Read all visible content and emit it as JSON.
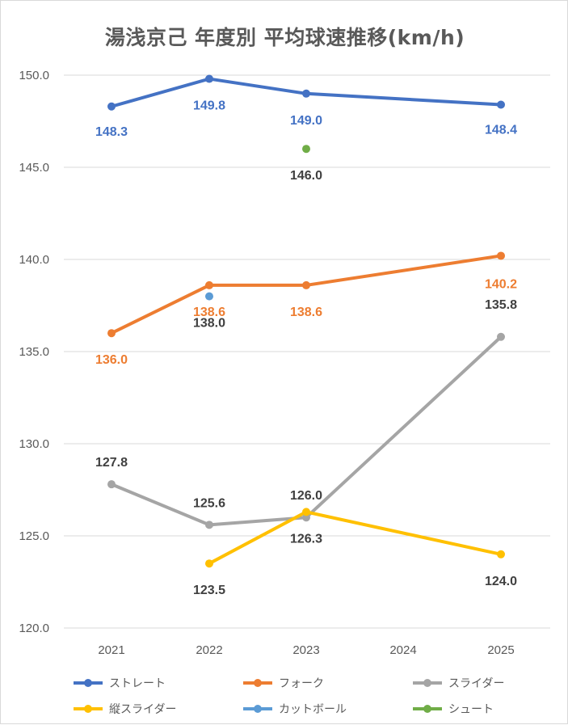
{
  "title": "湯浅京己 年度別 平均球速推移(km/h)",
  "chart_data": {
    "type": "line",
    "title": "湯浅京己 年度別 平均球速推移(km/h)",
    "x": [
      "2021",
      "2022",
      "2023",
      "2024",
      "2025"
    ],
    "ylim": [
      120.0,
      150.0
    ],
    "yticks": [
      "120.0",
      "125.0",
      "130.0",
      "135.0",
      "140.0",
      "145.0",
      "150.0"
    ],
    "grid": true,
    "legend_position": "bottom",
    "series": [
      {
        "name": "ストレート",
        "color": "#4472c4",
        "label_color": "#4472c4",
        "values": [
          148.3,
          149.8,
          149.0,
          null,
          148.4
        ],
        "labels": [
          "148.3",
          "149.8",
          "149.0",
          null,
          "148.4"
        ]
      },
      {
        "name": "フォーク",
        "color": "#ed7d31",
        "label_color": "#ed7d31",
        "values": [
          136.0,
          138.6,
          138.6,
          null,
          140.2
        ],
        "labels": [
          "136.0",
          "138.6",
          "138.6",
          null,
          "140.2"
        ]
      },
      {
        "name": "スライダー",
        "color": "#a5a5a5",
        "label_color": "#404040",
        "values": [
          127.8,
          125.6,
          126.0,
          null,
          135.8
        ],
        "labels": [
          "127.8",
          "125.6",
          "126.0",
          null,
          "135.8"
        ]
      },
      {
        "name": "縦スライダー",
        "color": "#ffc000",
        "label_color": "#404040",
        "values": [
          null,
          123.5,
          126.3,
          null,
          124.0
        ],
        "labels": [
          null,
          "123.5",
          "126.3",
          null,
          "124.0"
        ]
      },
      {
        "name": "カットボール",
        "color": "#5b9bd5",
        "label_color": "#404040",
        "values": [
          null,
          138.0,
          null,
          null,
          null
        ],
        "labels": [
          null,
          "138.0",
          null,
          null,
          null
        ]
      },
      {
        "name": "シュート",
        "color": "#70ad47",
        "label_color": "#404040",
        "values": [
          null,
          null,
          146.0,
          null,
          null
        ],
        "labels": [
          null,
          null,
          "146.0",
          null,
          null
        ]
      }
    ]
  }
}
